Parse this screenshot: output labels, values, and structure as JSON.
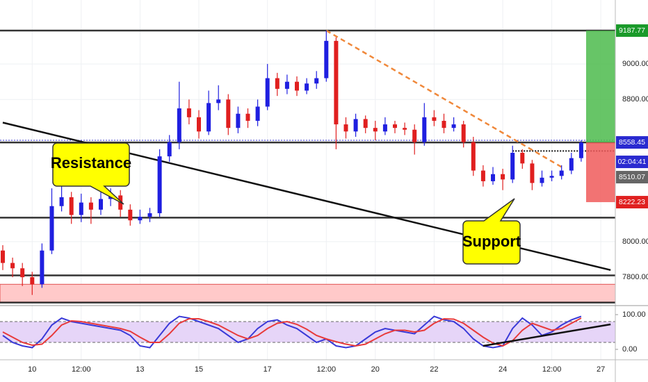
{
  "chart_data": {
    "type": "candlestick",
    "categories": [
      null,
      null,
      null,
      "10",
      null,
      null,
      null,
      null,
      "12:00",
      null,
      null,
      null,
      null,
      null,
      "13",
      null,
      null,
      null,
      null,
      null,
      "15",
      null,
      null,
      null,
      null,
      null,
      null,
      "17",
      null,
      null,
      null,
      null,
      null,
      "12:00",
      null,
      null,
      null,
      null,
      "20",
      null,
      null,
      null,
      null,
      null,
      "22",
      null,
      null,
      null,
      null,
      null,
      null,
      "24",
      null,
      null,
      null,
      null,
      "12:00",
      null,
      null,
      null,
      null,
      "27"
    ],
    "open": [
      7950,
      7880,
      7850,
      7800,
      7760,
      7950,
      8200,
      8250,
      8150,
      8220,
      8180,
      8240,
      8260,
      8180,
      8120,
      8140,
      8160,
      8480,
      8560,
      8750,
      8700,
      8620,
      8780,
      8800,
      8640,
      8720,
      8680,
      8760,
      8920,
      8860,
      8900,
      8850,
      8890,
      8920,
      9130,
      8660,
      8620,
      8690,
      8640,
      8620,
      8660,
      8640,
      8630,
      8560,
      8700,
      8680,
      8640,
      8660,
      8560,
      8400,
      8340,
      8380,
      8350,
      8500,
      8440,
      8330,
      8360,
      8370,
      8400,
      8470,
      null,
      null
    ],
    "high": [
      7980,
      7910,
      7880,
      7830,
      7990,
      8300,
      8320,
      8280,
      8270,
      8250,
      8280,
      8300,
      8290,
      8210,
      8180,
      8190,
      8520,
      8600,
      8900,
      8800,
      8740,
      8850,
      8880,
      8830,
      8760,
      8750,
      8800,
      9000,
      8950,
      8940,
      8930,
      8920,
      8960,
      9188,
      9150,
      8700,
      8720,
      8710,
      8680,
      8700,
      8680,
      8670,
      8660,
      8780,
      8740,
      8720,
      8700,
      8680,
      8590,
      8430,
      8420,
      8410,
      8540,
      8520,
      8460,
      8400,
      8400,
      8430,
      8500,
      8570,
      null,
      null
    ],
    "low": [
      7840,
      7800,
      7750,
      7700,
      7740,
      7930,
      8170,
      8100,
      8110,
      8100,
      8150,
      8200,
      8140,
      8090,
      8100,
      8110,
      8140,
      8450,
      8520,
      8660,
      8580,
      8600,
      8740,
      8600,
      8610,
      8640,
      8650,
      8740,
      8820,
      8830,
      8820,
      8830,
      8860,
      8900,
      8520,
      8580,
      8590,
      8610,
      8570,
      8600,
      8610,
      8600,
      8490,
      8540,
      8650,
      8610,
      8620,
      8530,
      8370,
      8310,
      8320,
      8290,
      8330,
      8410,
      8290,
      8310,
      8340,
      8350,
      8380,
      8450,
      null,
      null
    ],
    "close": [
      7880,
      7850,
      7800,
      7760,
      7950,
      8200,
      8250,
      8150,
      8220,
      8180,
      8240,
      8260,
      8180,
      8120,
      8140,
      8160,
      8480,
      8560,
      8750,
      8700,
      8620,
      8780,
      8800,
      8640,
      8720,
      8680,
      8760,
      8920,
      8860,
      8900,
      8850,
      8890,
      8920,
      9130,
      8660,
      8620,
      8690,
      8640,
      8620,
      8660,
      8640,
      8630,
      8560,
      8700,
      8680,
      8640,
      8660,
      8560,
      8400,
      8340,
      8380,
      8350,
      8500,
      8440,
      8330,
      8360,
      8370,
      8400,
      8470,
      8558,
      null,
      null
    ],
    "up_color": "#1f1fe0",
    "down_color": "#e01f1f",
    "ylim": [
      7640,
      9360
    ],
    "yticks": [
      {
        "value": 7800,
        "label": "7800.00"
      },
      {
        "value": 8000,
        "label": "8000.00"
      },
      {
        "value": 8800,
        "label": "8800.00"
      },
      {
        "value": 9000,
        "label": "9000.00"
      }
    ],
    "grid": true,
    "levels": [
      9188,
      8558,
      8135,
      7810,
      7657
    ],
    "zone": [
      7660,
      7760
    ],
    "trendlines": [
      {
        "from": [
          0,
          8670
        ],
        "to": [
          62,
          7840
        ],
        "color": "#111",
        "dashed": false
      },
      {
        "from": [
          33,
          9188
        ],
        "to": [
          57,
          8420
        ],
        "color": "#f0883a",
        "dashed": true
      }
    ],
    "price_labels": [
      {
        "value": 9187.77,
        "color": "#1a9a2a"
      },
      {
        "value": 8558.45,
        "color": "#2a2ad0"
      },
      {
        "value": 8510.07,
        "color": "#666"
      },
      {
        "value": 8222.23,
        "color": "#e02020"
      }
    ],
    "countdown": "02:04:41",
    "annotations": [
      "Resistance",
      "Support"
    ],
    "oscillator": {
      "ylim": [
        -24,
        126
      ],
      "yticks": [
        {
          "value": 0,
          "label": "0.00"
        },
        {
          "value": 100,
          "label": "100.00"
        }
      ],
      "bands": [
        20,
        80
      ],
      "trendline": {
        "from": [
          49,
          10
        ],
        "to": [
          62,
          72
        ]
      },
      "series": [
        {
          "color": "#3a3ad8",
          "values": [
            40,
            20,
            10,
            5,
            30,
            70,
            90,
            80,
            75,
            70,
            65,
            60,
            55,
            40,
            10,
            5,
            40,
            75,
            95,
            90,
            80,
            70,
            60,
            40,
            20,
            30,
            60,
            80,
            85,
            70,
            60,
            40,
            20,
            30,
            10,
            5,
            10,
            30,
            50,
            60,
            55,
            50,
            45,
            70,
            95,
            85,
            80,
            60,
            30,
            10,
            5,
            10,
            60,
            90,
            70,
            40,
            50,
            70,
            85,
            95,
            null,
            null
          ]
        },
        {
          "color": "#e83a3a",
          "values": [
            50,
            35,
            20,
            12,
            15,
            40,
            70,
            82,
            80,
            75,
            70,
            65,
            60,
            52,
            35,
            20,
            20,
            45,
            75,
            88,
            88,
            80,
            70,
            55,
            40,
            30,
            40,
            60,
            75,
            80,
            72,
            58,
            40,
            30,
            22,
            15,
            10,
            15,
            30,
            45,
            55,
            55,
            50,
            55,
            75,
            88,
            87,
            75,
            55,
            35,
            18,
            10,
            25,
            55,
            75,
            65,
            55,
            60,
            75,
            90,
            null,
            null
          ]
        }
      ]
    }
  }
}
